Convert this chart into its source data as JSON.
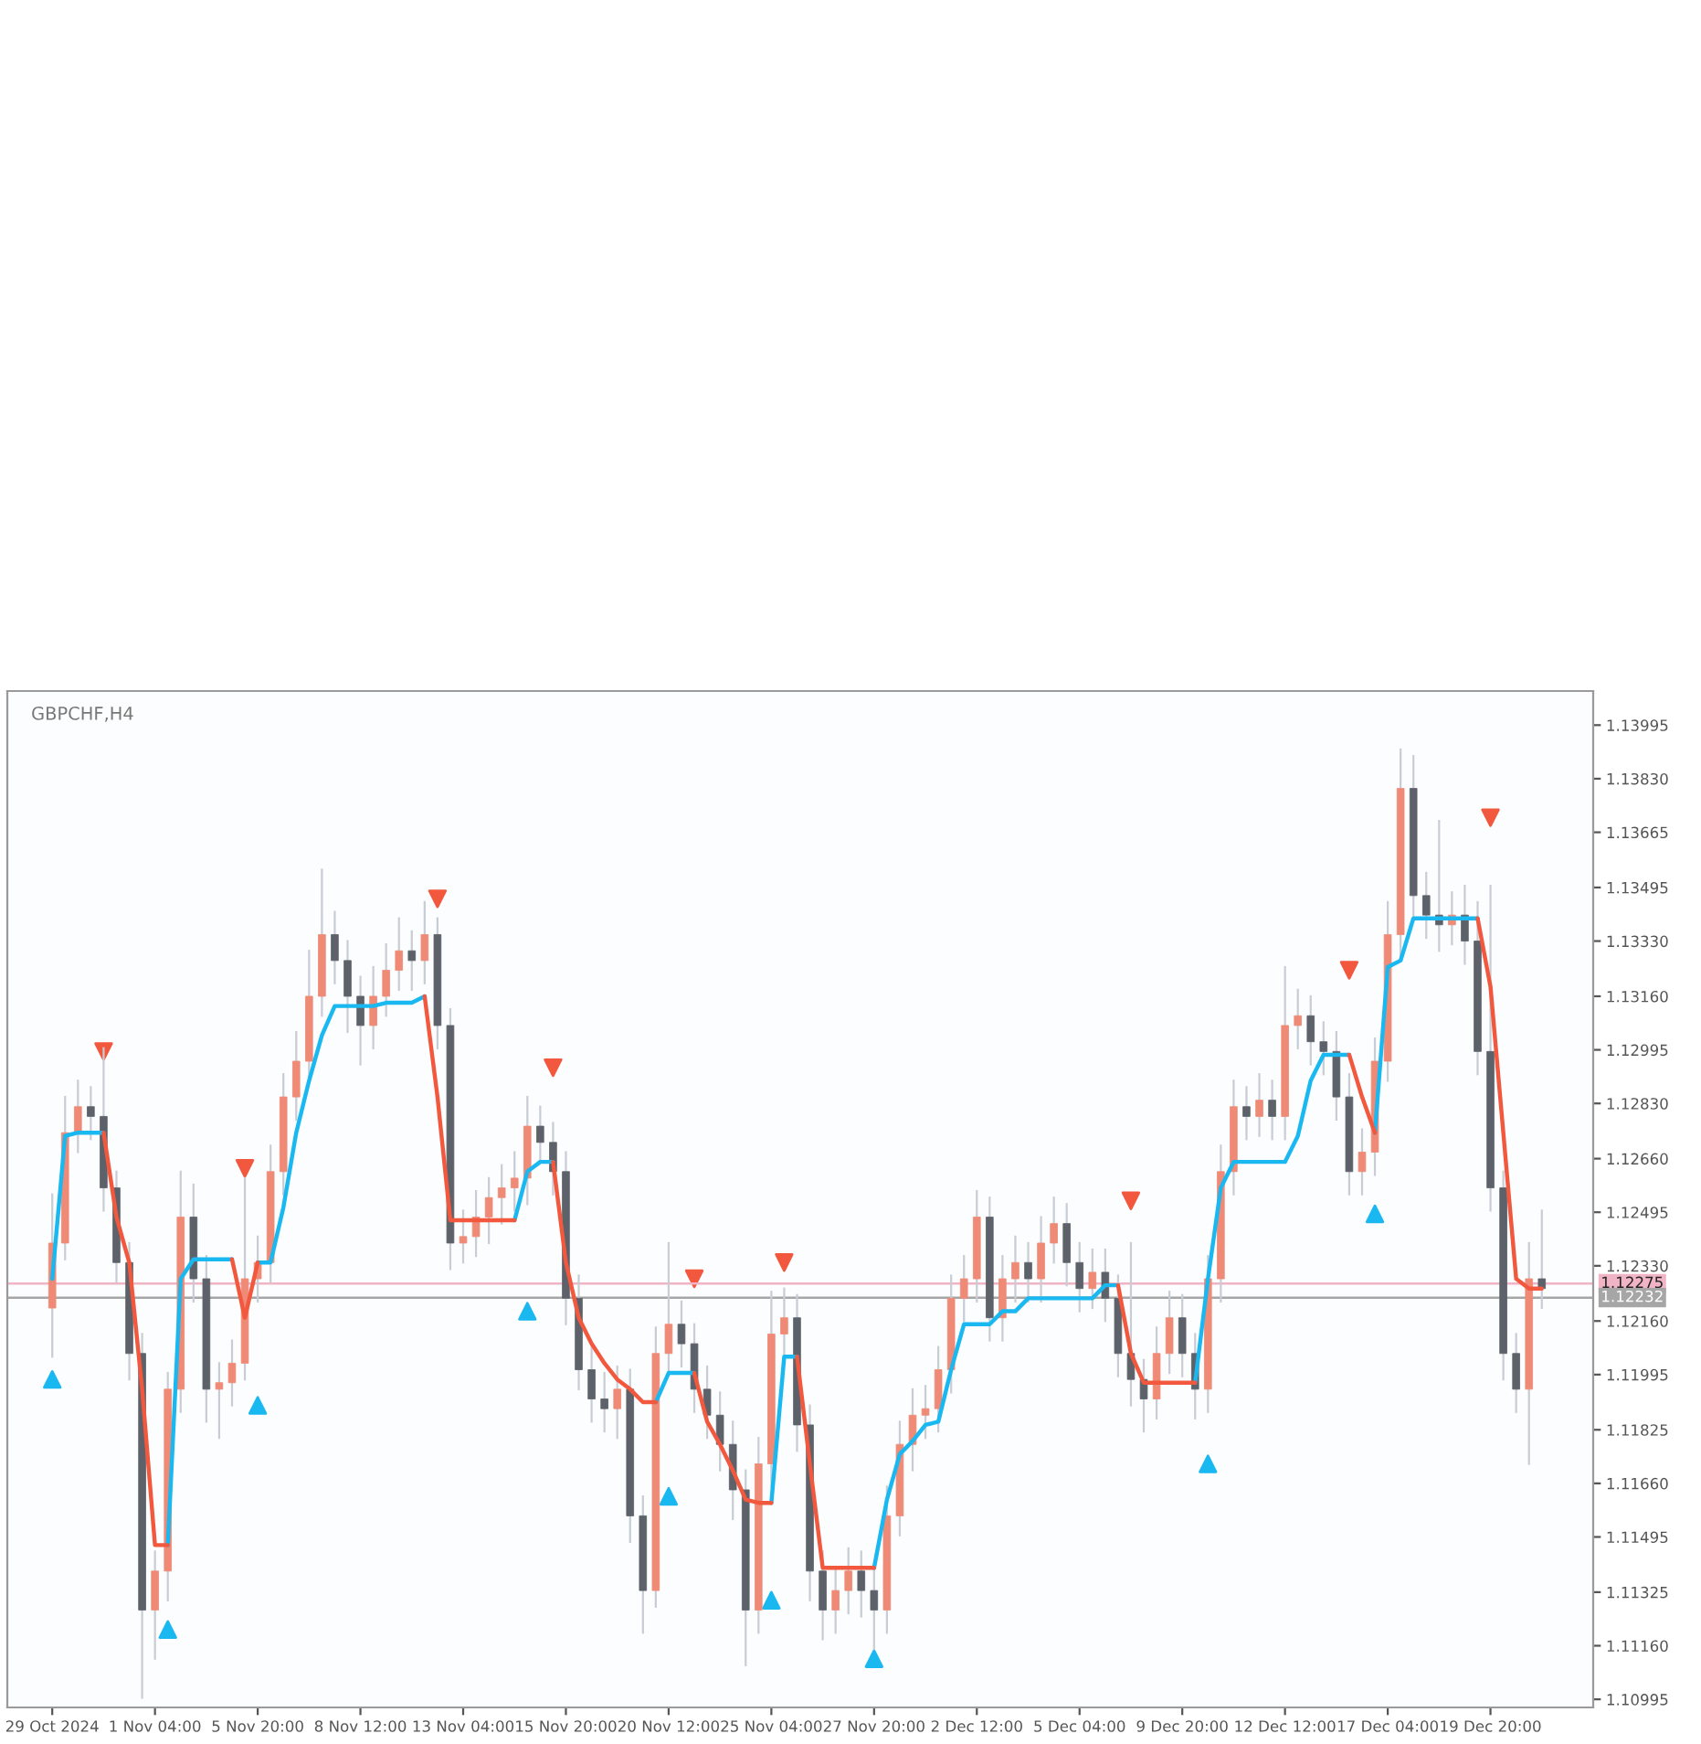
{
  "chart_data": {
    "type": "candlestick",
    "title": "GBPCHF,H4",
    "categories": [
      "29 Oct 2024",
      null,
      null,
      null,
      null,
      null,
      null,
      null,
      "1 Nov 04:00",
      null,
      null,
      null,
      null,
      null,
      null,
      null,
      "5 Nov 20:00",
      null,
      null,
      null,
      null,
      null,
      null,
      null,
      "8 Nov 12:00",
      null,
      null,
      null,
      null,
      null,
      null,
      null,
      "13 Nov 04:00",
      null,
      null,
      null,
      null,
      null,
      null,
      null,
      "15 Nov 20:00",
      null,
      null,
      null,
      null,
      null,
      null,
      null,
      "20 Nov 12:00",
      null,
      null,
      null,
      null,
      null,
      null,
      null,
      "25 Nov 04:00",
      null,
      null,
      null,
      null,
      null,
      null,
      null,
      "27 Nov 20:00",
      null,
      null,
      null,
      null,
      null,
      null,
      null,
      "2 Dec 12:00",
      null,
      null,
      null,
      null,
      null,
      null,
      null,
      "5 Dec 04:00",
      null,
      null,
      null,
      null,
      null,
      null,
      null,
      "9 Dec 20:00",
      null,
      null,
      null,
      null,
      null,
      null,
      null,
      "12 Dec 12:00",
      null,
      null,
      null,
      null,
      null,
      null,
      null,
      "17 Dec 04:00",
      null,
      null,
      null,
      null,
      null,
      null,
      null,
      "19 Dec 20:00",
      null,
      null,
      null,
      null
    ],
    "ohlc": [
      [
        1.122,
        1.1255,
        1.1205,
        1.124
      ],
      [
        1.124,
        1.1285,
        1.1235,
        1.1274
      ],
      [
        1.1274,
        1.129,
        1.1268,
        1.1282
      ],
      [
        1.1282,
        1.1288,
        1.1272,
        1.1279
      ],
      [
        1.1279,
        1.13,
        1.125,
        1.1257
      ],
      [
        1.1257,
        1.1262,
        1.1228,
        1.1234
      ],
      [
        1.1234,
        1.124,
        1.1198,
        1.1206
      ],
      [
        1.1206,
        1.1212,
        1.11,
        1.1127
      ],
      [
        1.1127,
        1.1145,
        1.1112,
        1.1139
      ],
      [
        1.1139,
        1.12,
        1.113,
        1.1195
      ],
      [
        1.1195,
        1.1262,
        1.1188,
        1.1248
      ],
      [
        1.1248,
        1.1258,
        1.1222,
        1.1229
      ],
      [
        1.1229,
        1.1236,
        1.1185,
        1.1195
      ],
      [
        1.1195,
        1.1203,
        1.118,
        1.1197
      ],
      [
        1.1197,
        1.121,
        1.119,
        1.1203
      ],
      [
        1.1203,
        1.126,
        1.1198,
        1.1229
      ],
      [
        1.1229,
        1.1242,
        1.1222,
        1.1234
      ],
      [
        1.1234,
        1.127,
        1.1228,
        1.1262
      ],
      [
        1.1262,
        1.1292,
        1.1255,
        1.1285
      ],
      [
        1.1285,
        1.1305,
        1.1278,
        1.1296
      ],
      [
        1.1296,
        1.133,
        1.129,
        1.1316
      ],
      [
        1.1316,
        1.1355,
        1.131,
        1.1335
      ],
      [
        1.1335,
        1.1342,
        1.132,
        1.1327
      ],
      [
        1.1327,
        1.1333,
        1.1305,
        1.1316
      ],
      [
        1.1316,
        1.1322,
        1.1295,
        1.1307
      ],
      [
        1.1307,
        1.1325,
        1.13,
        1.1316
      ],
      [
        1.1316,
        1.1332,
        1.131,
        1.1324
      ],
      [
        1.1324,
        1.134,
        1.1318,
        1.133
      ],
      [
        1.133,
        1.1336,
        1.1318,
        1.1327
      ],
      [
        1.1327,
        1.1345,
        1.132,
        1.1335
      ],
      [
        1.1335,
        1.134,
        1.13,
        1.1307
      ],
      [
        1.1307,
        1.1312,
        1.1232,
        1.124
      ],
      [
        1.124,
        1.125,
        1.1234,
        1.1242
      ],
      [
        1.1242,
        1.1256,
        1.1236,
        1.1248
      ],
      [
        1.1248,
        1.126,
        1.124,
        1.1254
      ],
      [
        1.1254,
        1.1264,
        1.1246,
        1.1257
      ],
      [
        1.1257,
        1.1268,
        1.125,
        1.126
      ],
      [
        1.126,
        1.1285,
        1.1252,
        1.1276
      ],
      [
        1.1276,
        1.1282,
        1.1265,
        1.1271
      ],
      [
        1.1271,
        1.1277,
        1.1255,
        1.1262
      ],
      [
        1.1262,
        1.1268,
        1.1215,
        1.1223
      ],
      [
        1.1223,
        1.123,
        1.1195,
        1.1201
      ],
      [
        1.1201,
        1.1208,
        1.1185,
        1.1192
      ],
      [
        1.1192,
        1.12,
        1.1182,
        1.1189
      ],
      [
        1.1189,
        1.1202,
        1.118,
        1.1195
      ],
      [
        1.1195,
        1.1201,
        1.1148,
        1.1156
      ],
      [
        1.1156,
        1.1162,
        1.112,
        1.1133
      ],
      [
        1.1133,
        1.1214,
        1.1128,
        1.1206
      ],
      [
        1.1206,
        1.124,
        1.12,
        1.1215
      ],
      [
        1.1215,
        1.1222,
        1.1202,
        1.1209
      ],
      [
        1.1209,
        1.1215,
        1.1188,
        1.1195
      ],
      [
        1.1195,
        1.1202,
        1.118,
        1.1187
      ],
      [
        1.1187,
        1.1194,
        1.117,
        1.1178
      ],
      [
        1.1178,
        1.1185,
        1.1155,
        1.1164
      ],
      [
        1.1164,
        1.117,
        1.111,
        1.1127
      ],
      [
        1.1127,
        1.118,
        1.112,
        1.1172
      ],
      [
        1.1172,
        1.1225,
        1.1165,
        1.1212
      ],
      [
        1.1212,
        1.1226,
        1.1205,
        1.1217
      ],
      [
        1.1217,
        1.1224,
        1.1176,
        1.1184
      ],
      [
        1.1184,
        1.119,
        1.113,
        1.1139
      ],
      [
        1.1139,
        1.1145,
        1.1118,
        1.1127
      ],
      [
        1.1127,
        1.114,
        1.112,
        1.1133
      ],
      [
        1.1133,
        1.1146,
        1.1126,
        1.1139
      ],
      [
        1.1139,
        1.1145,
        1.1125,
        1.1133
      ],
      [
        1.1133,
        1.114,
        1.1115,
        1.1127
      ],
      [
        1.1127,
        1.1165,
        1.112,
        1.1156
      ],
      [
        1.1156,
        1.1185,
        1.115,
        1.1178
      ],
      [
        1.1178,
        1.1195,
        1.117,
        1.1187
      ],
      [
        1.1187,
        1.1196,
        1.118,
        1.1189
      ],
      [
        1.1189,
        1.1208,
        1.1182,
        1.1201
      ],
      [
        1.1201,
        1.123,
        1.1194,
        1.1223
      ],
      [
        1.1223,
        1.1236,
        1.1216,
        1.1229
      ],
      [
        1.1229,
        1.1256,
        1.1222,
        1.1248
      ],
      [
        1.1248,
        1.1254,
        1.121,
        1.1217
      ],
      [
        1.1217,
        1.1236,
        1.121,
        1.1229
      ],
      [
        1.1229,
        1.1242,
        1.1222,
        1.1234
      ],
      [
        1.1234,
        1.124,
        1.1222,
        1.1229
      ],
      [
        1.1229,
        1.1248,
        1.1222,
        1.124
      ],
      [
        1.124,
        1.1254,
        1.1234,
        1.1246
      ],
      [
        1.1246,
        1.1252,
        1.1227,
        1.1234
      ],
      [
        1.1234,
        1.124,
        1.1219,
        1.1226
      ],
      [
        1.1226,
        1.1238,
        1.122,
        1.1231
      ],
      [
        1.1231,
        1.1238,
        1.1216,
        1.1223
      ],
      [
        1.1223,
        1.123,
        1.1199,
        1.1206
      ],
      [
        1.1206,
        1.124,
        1.119,
        1.1198
      ],
      [
        1.1198,
        1.1204,
        1.1182,
        1.1192
      ],
      [
        1.1192,
        1.1214,
        1.1186,
        1.1206
      ],
      [
        1.1206,
        1.1225,
        1.12,
        1.1217
      ],
      [
        1.1217,
        1.1224,
        1.1199,
        1.1206
      ],
      [
        1.1206,
        1.1212,
        1.1186,
        1.1195
      ],
      [
        1.1195,
        1.1236,
        1.1188,
        1.1229
      ],
      [
        1.1229,
        1.127,
        1.1222,
        1.1262
      ],
      [
        1.1262,
        1.129,
        1.1255,
        1.1282
      ],
      [
        1.1282,
        1.1288,
        1.1272,
        1.1279
      ],
      [
        1.1279,
        1.1292,
        1.1273,
        1.1284
      ],
      [
        1.1284,
        1.129,
        1.1272,
        1.1279
      ],
      [
        1.1279,
        1.1325,
        1.1272,
        1.1307
      ],
      [
        1.1307,
        1.1318,
        1.13,
        1.131
      ],
      [
        1.131,
        1.1316,
        1.1295,
        1.1302
      ],
      [
        1.1302,
        1.1308,
        1.1292,
        1.1299
      ],
      [
        1.1299,
        1.1305,
        1.1278,
        1.1285
      ],
      [
        1.1285,
        1.1292,
        1.1255,
        1.1262
      ],
      [
        1.1262,
        1.1275,
        1.1255,
        1.1268
      ],
      [
        1.1268,
        1.1303,
        1.1261,
        1.1296
      ],
      [
        1.1296,
        1.1345,
        1.129,
        1.1335
      ],
      [
        1.1335,
        1.1392,
        1.1328,
        1.138
      ],
      [
        1.138,
        1.139,
        1.134,
        1.1347
      ],
      [
        1.1347,
        1.1354,
        1.1334,
        1.1341
      ],
      [
        1.1341,
        1.137,
        1.133,
        1.1338
      ],
      [
        1.1338,
        1.1348,
        1.1332,
        1.1341
      ],
      [
        1.1341,
        1.135,
        1.1326,
        1.1333
      ],
      [
        1.1333,
        1.1345,
        1.1292,
        1.1299
      ],
      [
        1.1299,
        1.135,
        1.125,
        1.1257
      ],
      [
        1.1257,
        1.1262,
        1.1198,
        1.1206
      ],
      [
        1.1206,
        1.1212,
        1.1188,
        1.1195
      ],
      [
        1.1195,
        1.124,
        1.1172,
        1.1229
      ],
      [
        1.1229,
        1.125,
        1.122,
        1.1226
      ]
    ],
    "colors": [
      "#ef8a76",
      "#ef8a76",
      "#ef8a76",
      "#5d626a",
      "#5d626a",
      "#5d626a",
      "#5d626a",
      "#5d626a",
      "#ef8a76",
      "#ef8a76",
      "#ef8a76",
      "#5d626a",
      "#5d626a",
      "#ef8a76",
      "#ef8a76",
      "#ef8a76",
      "#ef8a76",
      "#ef8a76",
      "#ef8a76",
      "#ef8a76",
      "#ef8a76",
      "#ef8a76",
      "#5d626a",
      "#5d626a",
      "#5d626a",
      "#ef8a76",
      "#ef8a76",
      "#ef8a76",
      "#5d626a",
      "#ef8a76",
      "#5d626a",
      "#5d626a",
      "#ef8a76",
      "#ef8a76",
      "#ef8a76",
      "#ef8a76",
      "#ef8a76",
      "#ef8a76",
      "#5d626a",
      "#5d626a",
      "#5d626a",
      "#5d626a",
      "#5d626a",
      "#5d626a",
      "#ef8a76",
      "#5d626a",
      "#5d626a",
      "#ef8a76",
      "#ef8a76",
      "#5d626a",
      "#5d626a",
      "#5d626a",
      "#5d626a",
      "#5d626a",
      "#5d626a",
      "#ef8a76",
      "#ef8a76",
      "#ef8a76",
      "#5d626a",
      "#5d626a",
      "#5d626a",
      "#ef8a76",
      "#ef8a76",
      "#5d626a",
      "#5d626a",
      "#ef8a76",
      "#ef8a76",
      "#ef8a76",
      "#ef8a76",
      "#ef8a76",
      "#ef8a76",
      "#ef8a76",
      "#ef8a76",
      "#5d626a",
      "#ef8a76",
      "#ef8a76",
      "#5d626a",
      "#ef8a76",
      "#ef8a76",
      "#5d626a",
      "#5d626a",
      "#ef8a76",
      "#5d626a",
      "#5d626a",
      "#5d626a",
      "#5d626a",
      "#ef8a76",
      "#ef8a76",
      "#5d626a",
      "#5d626a",
      "#ef8a76",
      "#ef8a76",
      "#ef8a76",
      "#5d626a",
      "#ef8a76",
      "#5d626a",
      "#ef8a76",
      "#ef8a76",
      "#5d626a",
      "#5d626a",
      "#5d626a",
      "#5d626a",
      "#ef8a76",
      "#ef8a76",
      "#ef8a76",
      "#ef8a76",
      "#5d626a",
      "#5d626a",
      "#5d626a",
      "#ef8a76",
      "#5d626a",
      "#5d626a",
      "#5d626a",
      "#5d626a",
      "#5d626a",
      "#ef8a76",
      "#5d626a"
    ],
    "series": [
      {
        "type": "line",
        "color": "#1ab8f0",
        "values": [
          1.1229,
          1.1273,
          1.1274,
          1.1274,
          1.1274,
          null,
          null,
          null,
          null,
          1.1147,
          1.1229,
          1.1235,
          1.1235,
          1.1235,
          1.1235,
          null,
          1.1234,
          1.1234,
          1.1251,
          1.1274,
          1.129,
          1.1304,
          1.1313,
          1.1313,
          1.1313,
          1.1313,
          1.1314,
          1.1314,
          1.1314,
          1.1316,
          null,
          null,
          null,
          null,
          null,
          null,
          1.1247,
          1.1262,
          1.1265,
          1.1265,
          null,
          null,
          null,
          null,
          null,
          null,
          null,
          1.1191,
          1.12,
          1.12,
          1.12,
          null,
          null,
          null,
          null,
          null,
          1.116,
          1.1205,
          1.1205,
          null,
          null,
          null,
          null,
          null,
          1.114,
          1.1161,
          1.1175,
          1.1179,
          1.1184,
          1.1185,
          1.1201,
          1.1215,
          1.1215,
          1.1215,
          1.1219,
          1.1219,
          1.1223,
          1.1223,
          1.1223,
          1.1223,
          1.1223,
          1.1223,
          1.1227,
          1.1227,
          null,
          null,
          null,
          null,
          null,
          1.1197,
          1.1229,
          1.1257,
          1.1265,
          1.1265,
          1.1265,
          1.1265,
          1.1265,
          1.1273,
          1.129,
          1.1298,
          1.1298,
          1.1298,
          null,
          1.1274,
          1.1325,
          1.1327,
          1.134,
          1.134,
          1.134,
          1.134,
          1.134,
          1.134,
          null,
          null,
          null,
          null,
          null
        ]
      },
      {
        "type": "line",
        "color": "#f2583e",
        "values": [
          null,
          null,
          null,
          null,
          1.1274,
          1.1248,
          1.1234,
          1.1195,
          1.1147,
          1.1147,
          null,
          null,
          null,
          null,
          1.1235,
          1.1217,
          1.1234,
          null,
          null,
          null,
          null,
          null,
          null,
          null,
          null,
          null,
          null,
          null,
          null,
          1.1316,
          1.1285,
          1.1247,
          1.1247,
          1.1247,
          1.1247,
          1.1247,
          1.1247,
          null,
          null,
          1.1265,
          1.1234,
          1.1217,
          1.1209,
          1.1203,
          1.1198,
          1.1195,
          1.1191,
          1.1191,
          null,
          null,
          1.12,
          1.1185,
          1.1178,
          1.117,
          1.1161,
          1.116,
          1.116,
          null,
          1.1205,
          1.1172,
          1.114,
          1.114,
          1.114,
          1.114,
          1.114,
          null,
          null,
          null,
          null,
          null,
          null,
          null,
          null,
          null,
          null,
          null,
          null,
          null,
          null,
          null,
          null,
          null,
          null,
          1.1227,
          1.1206,
          1.1197,
          1.1197,
          1.1197,
          1.1197,
          1.1197,
          null,
          null,
          null,
          null,
          null,
          null,
          null,
          null,
          null,
          null,
          null,
          1.1298,
          1.1285,
          1.1274,
          null,
          null,
          null,
          null,
          null,
          null,
          null,
          1.134,
          1.1319,
          1.1274,
          1.1229,
          1.1226,
          1.1226
        ]
      },
      {
        "type": "scatter",
        "color": "#1ab8f0",
        "marker": "triangle",
        "values": [
          1.1198,
          null,
          null,
          null,
          null,
          null,
          null,
          null,
          null,
          1.1121,
          null,
          null,
          null,
          null,
          null,
          null,
          1.119,
          null,
          null,
          null,
          null,
          null,
          null,
          null,
          null,
          null,
          null,
          null,
          null,
          null,
          null,
          null,
          null,
          null,
          null,
          null,
          null,
          1.1219,
          null,
          null,
          null,
          null,
          null,
          null,
          null,
          null,
          null,
          null,
          1.1162,
          null,
          null,
          null,
          null,
          null,
          null,
          null,
          1.113,
          null,
          null,
          null,
          null,
          null,
          null,
          null,
          1.1112,
          null,
          null,
          null,
          null,
          null,
          null,
          null,
          null,
          null,
          null,
          null,
          null,
          null,
          null,
          null,
          null,
          null,
          null,
          null,
          null,
          null,
          null,
          null,
          null,
          null,
          1.1172,
          null,
          null,
          null,
          null,
          null,
          null,
          null,
          null,
          null,
          null,
          null,
          null,
          1.1249,
          null,
          null,
          null,
          null,
          null,
          null,
          null,
          null,
          null,
          null,
          null,
          null,
          null
        ]
      },
      {
        "type": "scatter",
        "color": "#f2583e",
        "marker": "triangle_down",
        "values": [
          null,
          null,
          null,
          null,
          1.1299,
          null,
          null,
          null,
          null,
          null,
          null,
          null,
          null,
          null,
          null,
          1.1263,
          null,
          null,
          null,
          null,
          null,
          null,
          null,
          null,
          null,
          null,
          null,
          null,
          null,
          null,
          1.1346,
          null,
          null,
          null,
          null,
          null,
          null,
          null,
          null,
          1.1294,
          null,
          null,
          null,
          null,
          null,
          null,
          null,
          null,
          null,
          null,
          1.1229,
          null,
          null,
          null,
          null,
          null,
          null,
          1.1234,
          null,
          null,
          null,
          null,
          null,
          null,
          null,
          null,
          null,
          null,
          null,
          null,
          null,
          null,
          null,
          null,
          null,
          null,
          null,
          null,
          null,
          null,
          null,
          null,
          null,
          null,
          1.1253,
          null,
          null,
          null,
          null,
          null,
          null,
          null,
          null,
          null,
          null,
          null,
          null,
          null,
          null,
          null,
          null,
          1.1324,
          null,
          null,
          null,
          null,
          null,
          null,
          null,
          null,
          null,
          null,
          1.1371,
          null,
          null,
          null,
          null
        ]
      }
    ],
    "ylim": [
      1.1097,
      1.141
    ],
    "yticks": [
      1.13995,
      {
        "value": 1.1383,
        "label": "1.13830"
      },
      1.13665,
      1.13495,
      {
        "value": 1.1333,
        "label": "1.13330"
      },
      {
        "value": 1.1316,
        "label": "1.13160"
      },
      1.12995,
      {
        "value": 1.1283,
        "label": "1.12830"
      },
      {
        "value": 1.1266,
        "label": "1.12660"
      },
      1.12495,
      {
        "value": 1.1233,
        "label": "1.12330"
      },
      {
        "value": 1.1216,
        "label": "1.12160"
      },
      1.11995,
      1.11825,
      {
        "value": 1.1166,
        "label": "1.11660"
      },
      1.11495,
      1.11325,
      {
        "value": 1.1116,
        "label": "1.11160"
      },
      1.10995
    ],
    "ref_lines": [
      {
        "axis": "y",
        "value": 1.12275,
        "label": "1.12275",
        "color": "#f0b4c4"
      },
      {
        "axis": "y",
        "value": 1.12232,
        "label": "1.12232",
        "color": "#a6a6a6"
      }
    ],
    "grid": false
  }
}
